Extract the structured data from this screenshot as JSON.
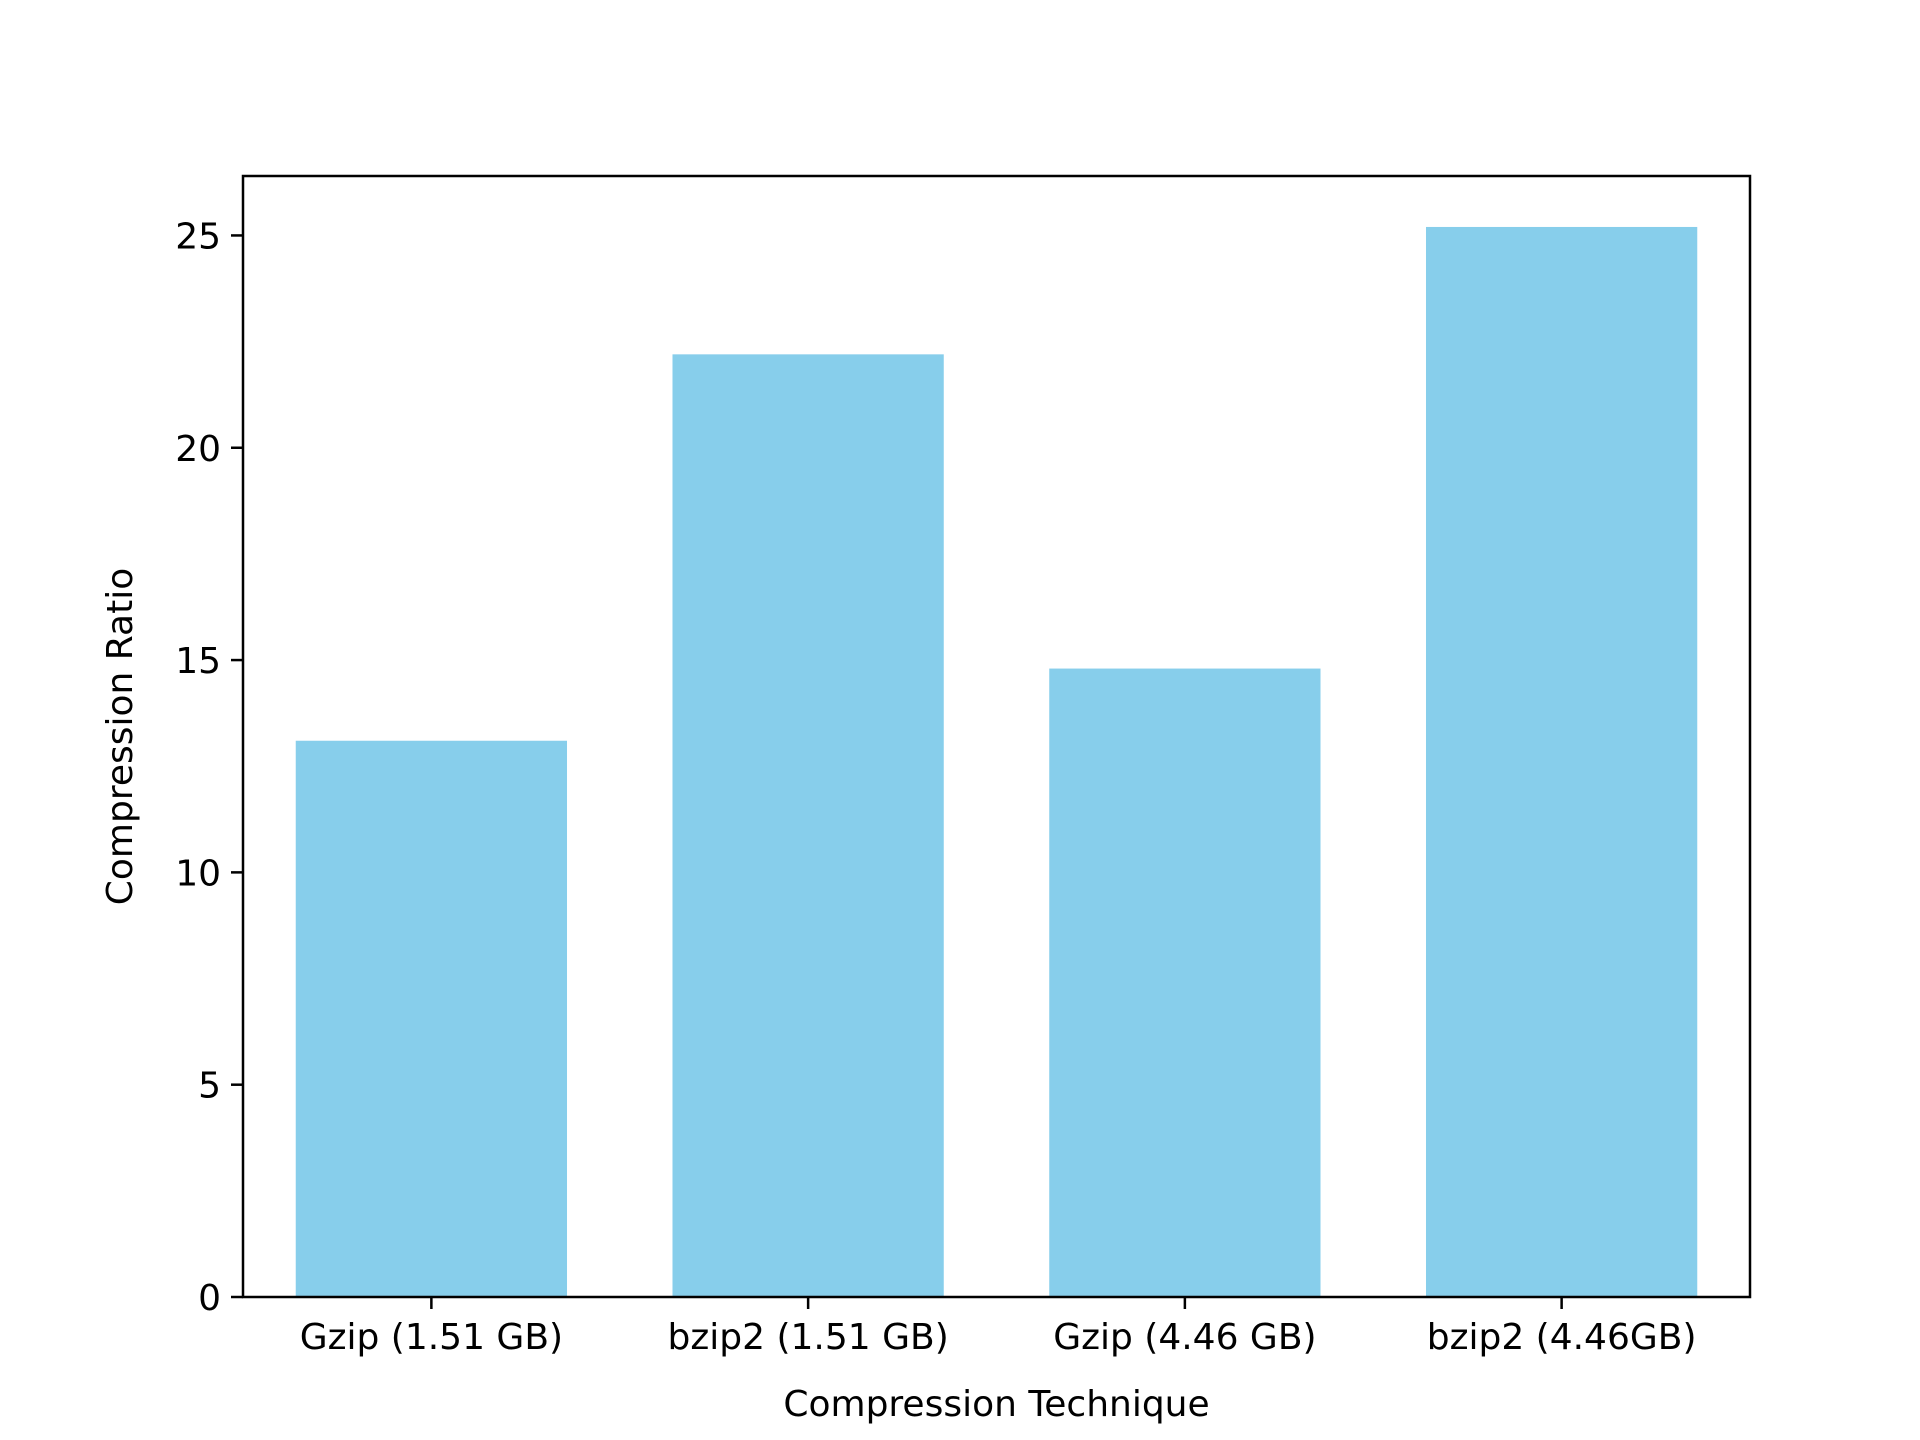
{
  "chart_data": {
    "type": "bar",
    "title": "",
    "xlabel": "Compression Technique",
    "ylabel": "Compression Ratio",
    "categories": [
      "Gzip (1.51 GB)",
      "bzip2 (1.51 GB)",
      "Gzip (4.46 GB)",
      "bzip2 (4.46GB)"
    ],
    "values": [
      13.1,
      22.2,
      14.8,
      25.2
    ],
    "ylim": [
      0,
      26.4
    ],
    "yticks": [
      0,
      5,
      10,
      15,
      20,
      25
    ],
    "bar_color": "#87ceeb",
    "grid": false,
    "legend": false
  }
}
